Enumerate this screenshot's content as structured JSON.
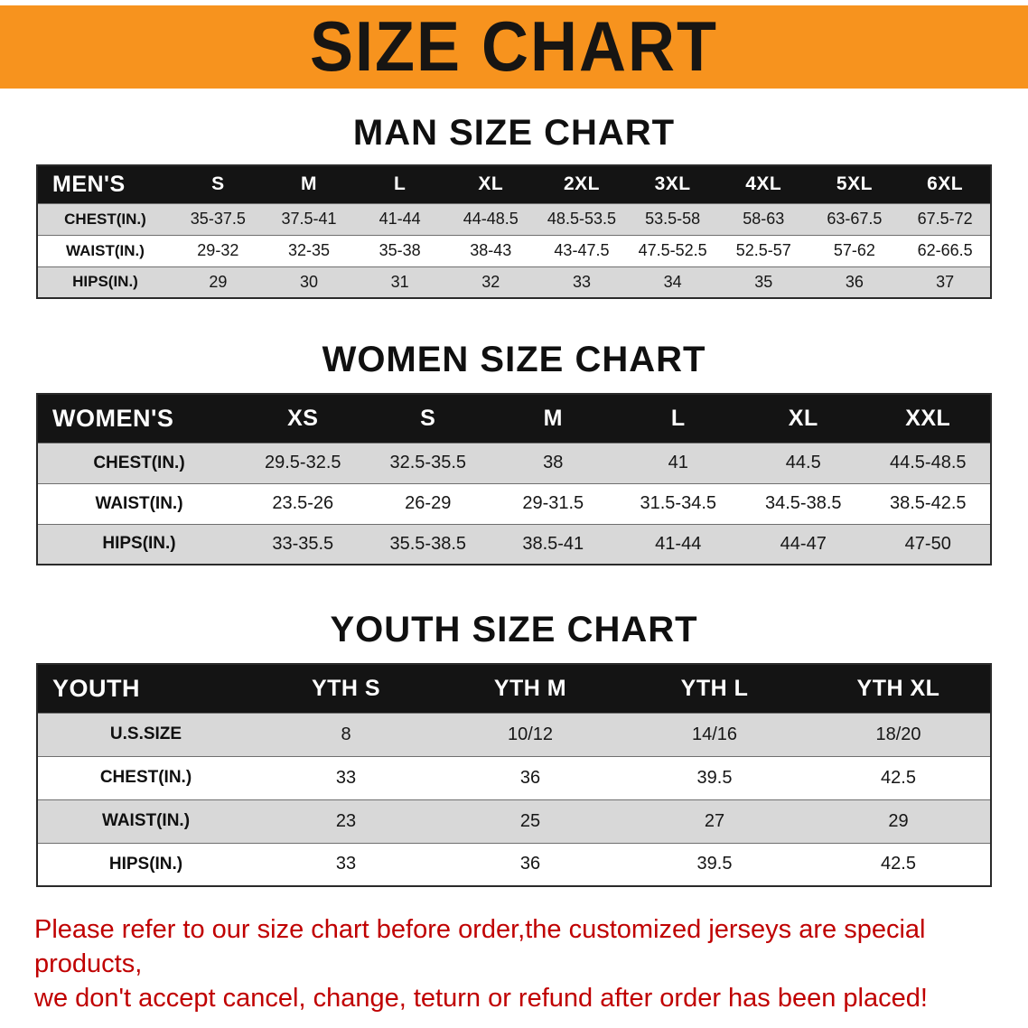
{
  "colors": {
    "banner-bg": "#F7931E",
    "header-bg": "#141414",
    "stripe": "#D8D8D8",
    "notice-color": "#C00000",
    "title-ink": "#171513"
  },
  "banner": {
    "title": "SIZE CHART"
  },
  "sections": [
    {
      "title": "MAN SIZE CHART",
      "table": {
        "header": [
          "MEN'S",
          "S",
          "M",
          "L",
          "XL",
          "2XL",
          "3XL",
          "4XL",
          "5XL",
          "6XL"
        ],
        "rows": [
          [
            "CHEST(IN.)",
            "35-37.5",
            "37.5-41",
            "41-44",
            "44-48.5",
            "48.5-53.5",
            "53.5-58",
            "58-63",
            "63-67.5",
            "67.5-72"
          ],
          [
            "WAIST(IN.)",
            "29-32",
            "32-35",
            "35-38",
            "38-43",
            "43-47.5",
            "47.5-52.5",
            "52.5-57",
            "57-62",
            "62-66.5"
          ],
          [
            "HIPS(IN.)",
            "29",
            "30",
            "31",
            "32",
            "33",
            "34",
            "35",
            "36",
            "37"
          ]
        ]
      }
    },
    {
      "title": "WOMEN SIZE CHART",
      "table": {
        "header": [
          "WOMEN'S",
          "XS",
          "S",
          "M",
          "L",
          "XL",
          "XXL"
        ],
        "rows": [
          [
            "CHEST(IN.)",
            "29.5-32.5",
            "32.5-35.5",
            "38",
            "41",
            "44.5",
            "44.5-48.5"
          ],
          [
            "WAIST(IN.)",
            "23.5-26",
            "26-29",
            "29-31.5",
            "31.5-34.5",
            "34.5-38.5",
            "38.5-42.5"
          ],
          [
            "HIPS(IN.)",
            "33-35.5",
            "35.5-38.5",
            "38.5-41",
            "41-44",
            "44-47",
            "47-50"
          ]
        ]
      }
    },
    {
      "title": "YOUTH SIZE CHART",
      "table": {
        "header": [
          "YOUTH",
          "YTH S",
          "YTH M",
          "YTH L",
          "YTH XL"
        ],
        "rows": [
          [
            "U.S.SIZE",
            "8",
            "10/12",
            "14/16",
            "18/20"
          ],
          [
            "CHEST(IN.)",
            "33",
            "36",
            "39.5",
            "42.5"
          ],
          [
            "WAIST(IN.)",
            "23",
            "25",
            "27",
            "29"
          ],
          [
            "HIPS(IN.)",
            "33",
            "36",
            "39.5",
            "42.5"
          ]
        ]
      }
    }
  ],
  "footer": {
    "lines": [
      "Please refer to our size chart before order,the customized jerseys are special products,",
      "we don't accept cancel, change, teturn or refund after order has been placed!"
    ]
  }
}
